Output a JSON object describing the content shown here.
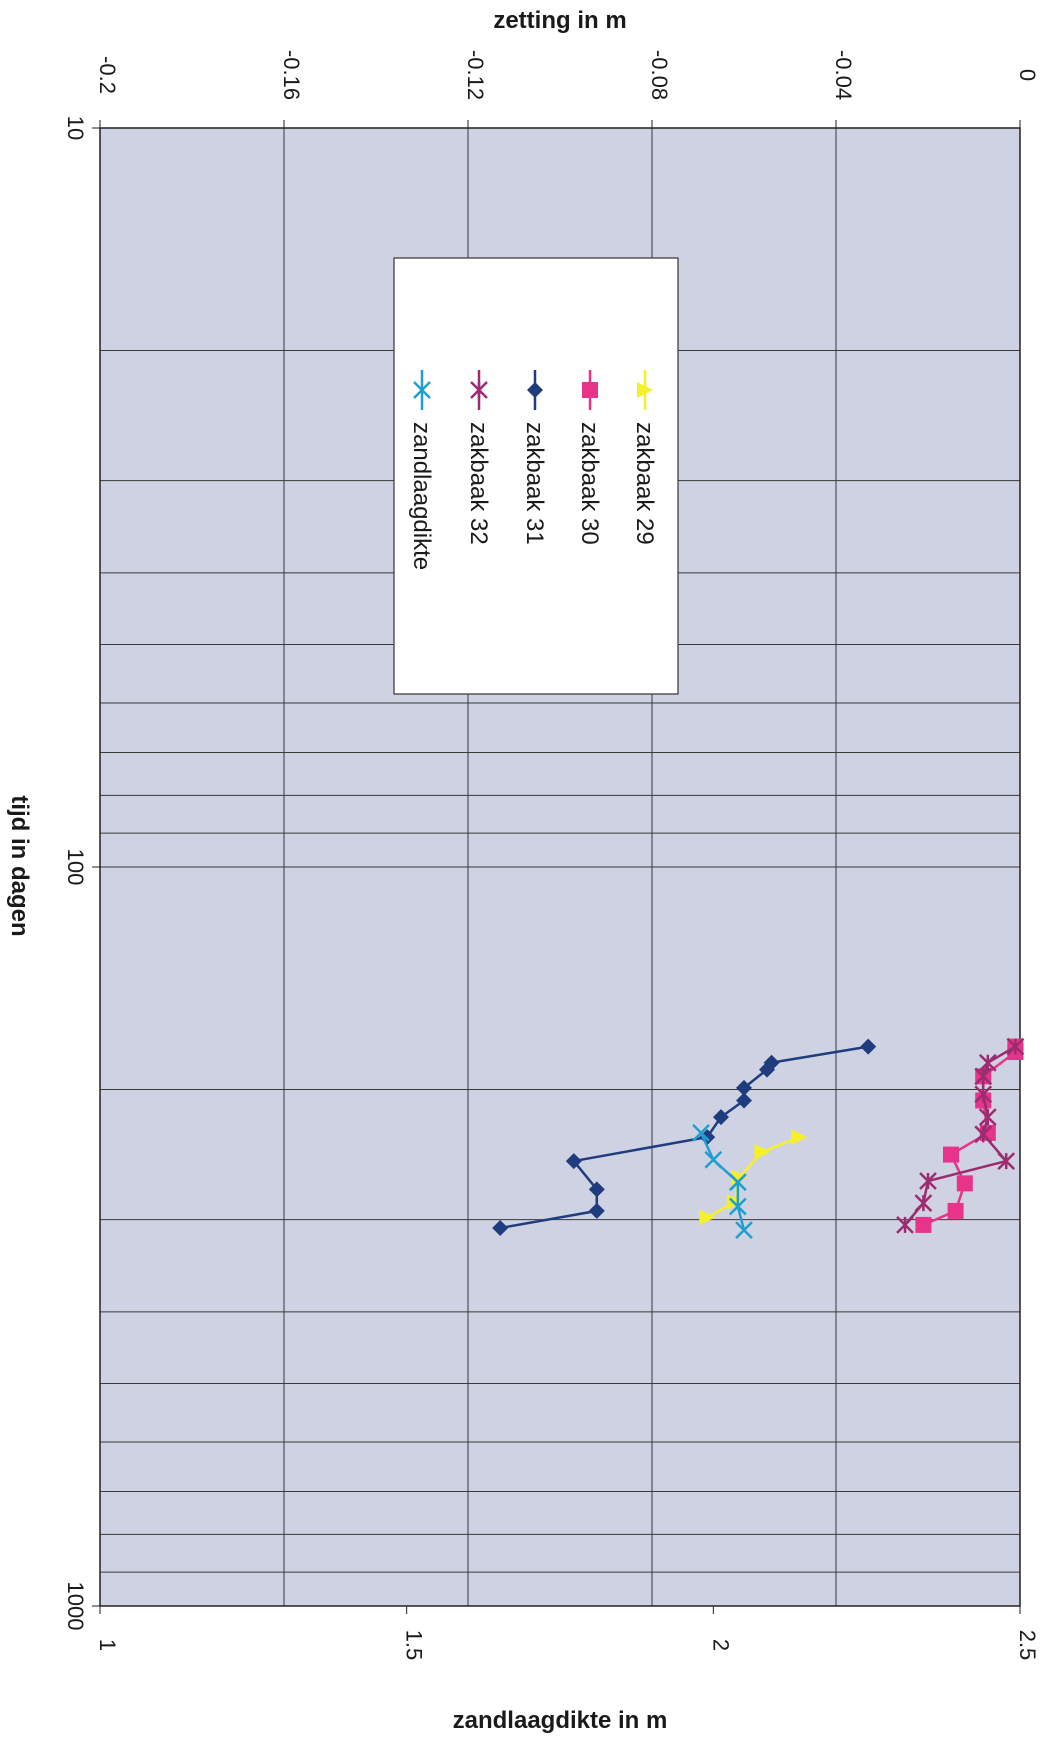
{
  "chart_data": {
    "type": "scatter",
    "orientation": "rotated 90 degrees clockwise",
    "xlabel": "tijd in dagen",
    "x_scale": "log",
    "xlim": [
      10,
      1000
    ],
    "x_ticks": [
      "10",
      "100",
      "1000"
    ],
    "y_left_label": "zetting in m",
    "y_left_lim": [
      -0.2,
      0
    ],
    "y_left_ticks": [
      "-0.2",
      "-0.16",
      "-0.12",
      "-0.08",
      "-0.04",
      "0"
    ],
    "y_right_label": "zandlaagdikte in m",
    "y_right_lim": [
      1,
      2.5
    ],
    "y_right_ticks": [
      "1",
      "1.5",
      "2",
      "2.5"
    ],
    "grid": true,
    "legend_position": "top-center",
    "colors": {
      "plot_background": "#cfd2e3",
      "grid": "#3a3a3a"
    },
    "series": [
      {
        "name": "zakbaak 29",
        "axis": "left",
        "color": "#f5f02a",
        "marker": "triangle",
        "x": [
          232,
          243,
          263,
          284,
          298
        ],
        "y": [
          -0.048,
          -0.056,
          -0.061,
          -0.062,
          -0.068
        ]
      },
      {
        "name": "zakbaak 30",
        "axis": "left",
        "color": "#e8338a",
        "marker": "square",
        "x": [
          175,
          178,
          192,
          207,
          229,
          245,
          268,
          292,
          305
        ],
        "y": [
          -0.001,
          -0.001,
          -0.008,
          -0.008,
          -0.007,
          -0.015,
          -0.012,
          -0.014,
          -0.021
        ]
      },
      {
        "name": "zakbaak 31",
        "axis": "left",
        "color": "#1f3c7e",
        "marker": "diamond",
        "x": [
          175,
          184,
          188,
          199,
          207,
          218,
          232,
          250,
          273,
          292,
          308
        ],
        "y": [
          -0.033,
          -0.054,
          -0.055,
          -0.06,
          -0.06,
          -0.065,
          -0.068,
          -0.097,
          -0.092,
          -0.092,
          -0.113
        ]
      },
      {
        "name": "zakbaak 32",
        "axis": "left",
        "color": "#9c2b70",
        "marker": "star",
        "x": [
          175,
          184,
          192,
          203,
          218,
          230,
          250,
          266,
          285,
          305
        ],
        "y": [
          -0.001,
          -0.007,
          -0.008,
          -0.008,
          -0.007,
          -0.008,
          -0.003,
          -0.02,
          -0.021,
          -0.025
        ]
      },
      {
        "name": "zandlaagdikte",
        "axis": "right",
        "color": "#1f9fd0",
        "marker": "cross",
        "x": [
          229,
          249,
          267,
          288,
          310
        ],
        "y": [
          1.98,
          2.0,
          2.04,
          2.04,
          2.05
        ]
      }
    ]
  }
}
